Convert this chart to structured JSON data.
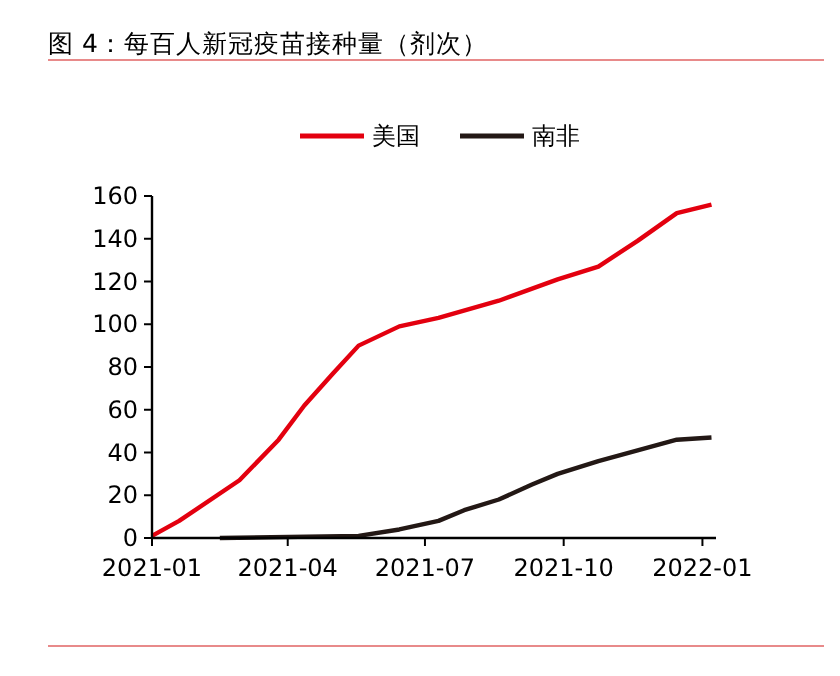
{
  "chart_data": {
    "type": "line",
    "title": "图 4：每百人新冠疫苗接种量（剂次）",
    "xlim": [
      "2021-01-01",
      "2022-01-10"
    ],
    "xticks": [
      "2021-01",
      "2021-04",
      "2021-07",
      "2021-10",
      "2022-01"
    ],
    "ylim": [
      0,
      160
    ],
    "yticks": [
      0,
      20,
      40,
      60,
      80,
      100,
      120,
      140,
      160
    ],
    "legend": "top",
    "grid": false,
    "series": [
      {
        "name": "美国",
        "color": "#e3000f",
        "x": [
          "2021-01-01",
          "2021-01-19",
          "2021-02-28",
          "2021-03-26",
          "2021-04-12",
          "2021-05-01",
          "2021-05-18",
          "2021-06-14",
          "2021-07-10",
          "2021-08-19",
          "2021-09-27",
          "2021-10-24",
          "2021-11-19",
          "2021-12-15",
          "2022-01-07"
        ],
        "values": [
          1,
          8,
          27,
          46,
          62,
          77,
          90,
          99,
          103,
          111,
          121,
          127,
          139,
          152,
          156
        ]
      },
      {
        "name": "南非",
        "color": "#231815",
        "x": [
          "2021-02-15",
          "2021-05-18",
          "2021-06-14",
          "2021-07-10",
          "2021-07-27",
          "2021-08-19",
          "2021-09-10",
          "2021-09-27",
          "2021-10-24",
          "2021-11-19",
          "2021-12-15",
          "2022-01-07"
        ],
        "values": [
          0,
          1,
          4,
          8,
          13,
          18,
          25,
          30,
          36,
          41,
          46,
          47
        ]
      }
    ]
  }
}
